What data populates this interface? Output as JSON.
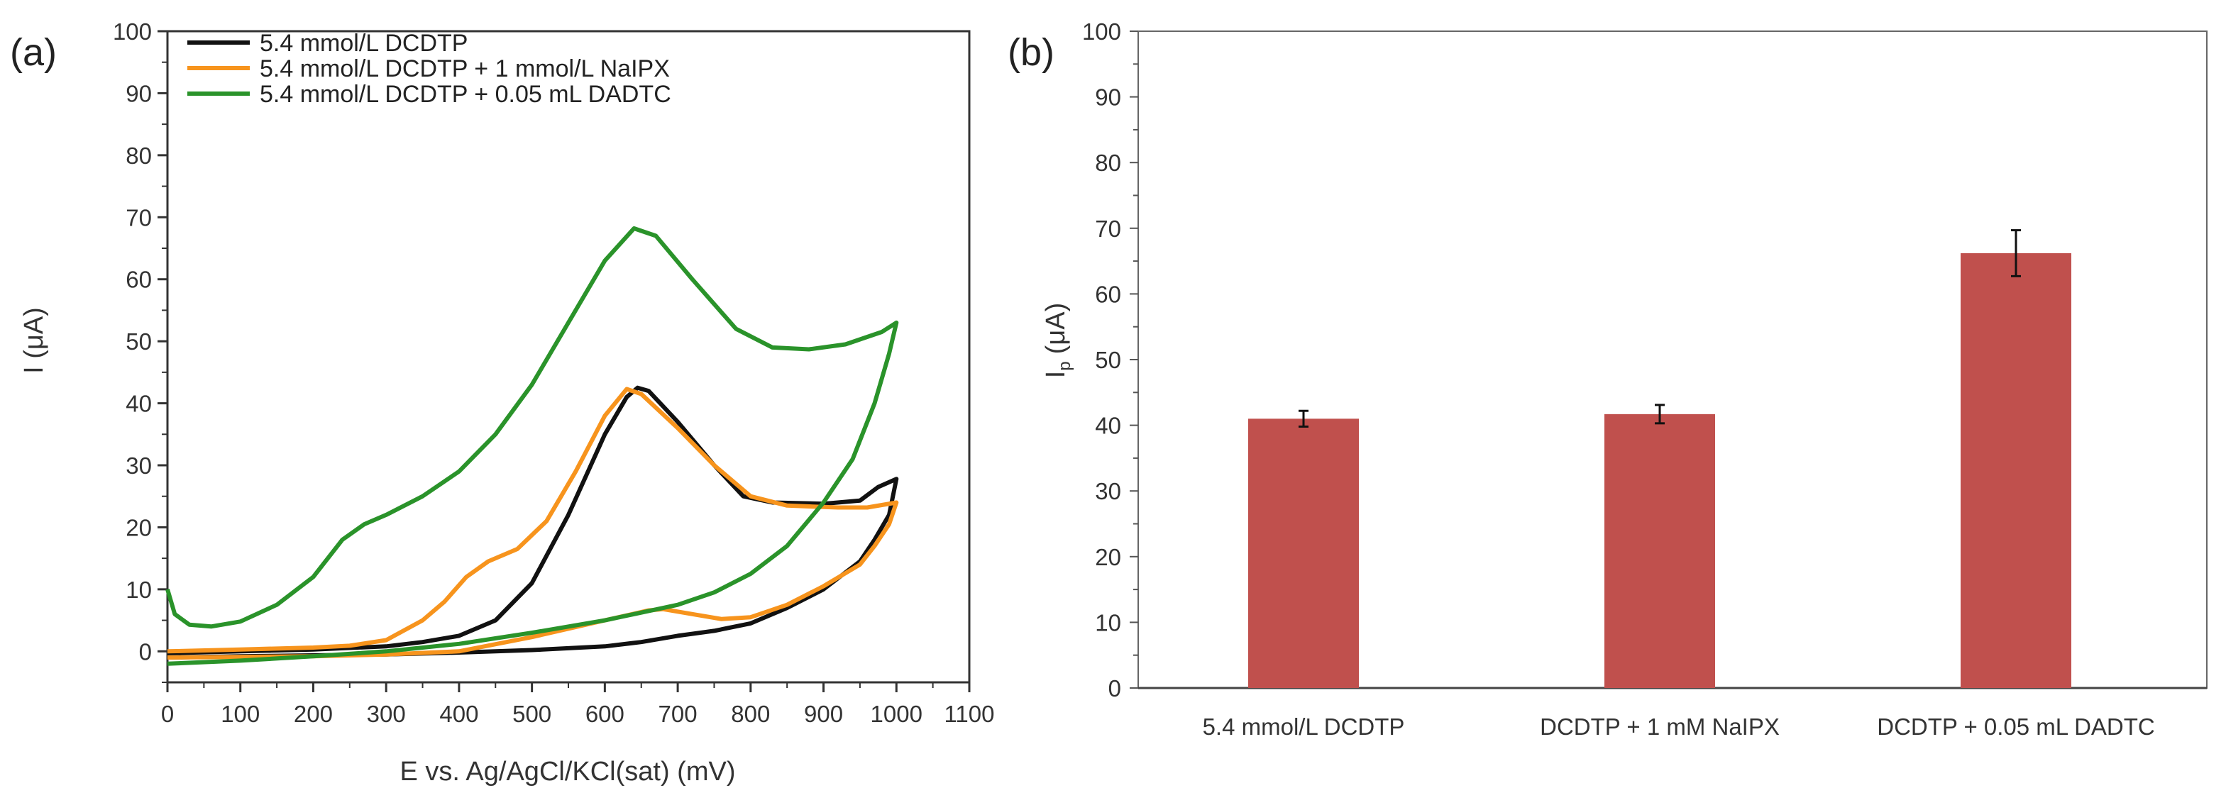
{
  "chart_data": [
    {
      "type": "line",
      "panel_label": "(a)",
      "xlabel": "E vs. Ag/AgCl/KCl(sat) (mV)",
      "ylabel": "I (μA)",
      "xlim": [
        0,
        1100
      ],
      "ylim": [
        -5,
        100
      ],
      "xticks": [
        0,
        100,
        200,
        300,
        400,
        500,
        600,
        700,
        800,
        900,
        1000,
        1100
      ],
      "yticks": [
        0,
        10,
        20,
        30,
        40,
        50,
        60,
        70,
        80,
        90,
        100
      ],
      "grid": false,
      "legend_position": "top-left",
      "series": [
        {
          "name": "5.4 mmol/L DCDTP",
          "color": "#111111",
          "points": [
            [
              0,
              -0.3
            ],
            [
              100,
              0
            ],
            [
              200,
              0.3
            ],
            [
              300,
              0.8
            ],
            [
              350,
              1.5
            ],
            [
              400,
              2.5
            ],
            [
              450,
              5
            ],
            [
              500,
              11
            ],
            [
              550,
              22
            ],
            [
              600,
              35
            ],
            [
              630,
              41
            ],
            [
              645,
              42.5
            ],
            [
              660,
              42
            ],
            [
              700,
              37
            ],
            [
              750,
              30
            ],
            [
              790,
              25
            ],
            [
              830,
              24
            ],
            [
              900,
              23.8
            ],
            [
              950,
              24.3
            ],
            [
              975,
              26.5
            ],
            [
              1000,
              27.8
            ],
            [
              990,
              22
            ],
            [
              970,
              18
            ],
            [
              950,
              14.5
            ],
            [
              900,
              10
            ],
            [
              850,
              7
            ],
            [
              800,
              4.5
            ],
            [
              750,
              3.3
            ],
            [
              700,
              2.5
            ],
            [
              650,
              1.5
            ],
            [
              600,
              0.8
            ],
            [
              500,
              0.2
            ],
            [
              400,
              -0.2
            ],
            [
              300,
              -0.5
            ],
            [
              100,
              -0.8
            ],
            [
              0,
              -1
            ]
          ]
        },
        {
          "name": "5.4 mmol/L DCDTP + 1 mmol/L NaIPX",
          "color": "#f7941d",
          "points": [
            [
              0,
              0
            ],
            [
              100,
              0.3
            ],
            [
              200,
              0.6
            ],
            [
              250,
              0.9
            ],
            [
              300,
              1.8
            ],
            [
              350,
              5
            ],
            [
              380,
              8
            ],
            [
              410,
              12
            ],
            [
              440,
              14.5
            ],
            [
              480,
              16.5
            ],
            [
              520,
              21
            ],
            [
              560,
              29
            ],
            [
              600,
              38
            ],
            [
              630,
              42.3
            ],
            [
              650,
              41.5
            ],
            [
              700,
              36
            ],
            [
              750,
              30
            ],
            [
              800,
              25
            ],
            [
              850,
              23.5
            ],
            [
              920,
              23.2
            ],
            [
              960,
              23.2
            ],
            [
              1000,
              24
            ],
            [
              990,
              20.5
            ],
            [
              970,
              17
            ],
            [
              950,
              14
            ],
            [
              900,
              10.5
            ],
            [
              850,
              7.5
            ],
            [
              800,
              5.5
            ],
            [
              760,
              5.2
            ],
            [
              720,
              6
            ],
            [
              680,
              6.8
            ],
            [
              660,
              6.6
            ],
            [
              600,
              5
            ],
            [
              500,
              2.3
            ],
            [
              400,
              0
            ],
            [
              300,
              -0.5
            ],
            [
              200,
              -0.8
            ],
            [
              0,
              -1
            ]
          ]
        },
        {
          "name": "5.4 mmol/L DCDTP + 0.05 mL DADTC",
          "color": "#2a932a",
          "points": [
            [
              0,
              10
            ],
            [
              10,
              6
            ],
            [
              30,
              4.3
            ],
            [
              60,
              4
            ],
            [
              100,
              4.8
            ],
            [
              150,
              7.5
            ],
            [
              200,
              12
            ],
            [
              240,
              18
            ],
            [
              270,
              20.5
            ],
            [
              300,
              22
            ],
            [
              350,
              25
            ],
            [
              400,
              29
            ],
            [
              450,
              35
            ],
            [
              500,
              43
            ],
            [
              550,
              53
            ],
            [
              600,
              63
            ],
            [
              640,
              68.2
            ],
            [
              670,
              67
            ],
            [
              720,
              60
            ],
            [
              780,
              52
            ],
            [
              830,
              49
            ],
            [
              880,
              48.7
            ],
            [
              930,
              49.5
            ],
            [
              980,
              51.5
            ],
            [
              1000,
              53
            ],
            [
              990,
              48
            ],
            [
              970,
              40
            ],
            [
              940,
              31
            ],
            [
              900,
              24
            ],
            [
              850,
              17
            ],
            [
              800,
              12.5
            ],
            [
              750,
              9.5
            ],
            [
              700,
              7.5
            ],
            [
              600,
              5
            ],
            [
              500,
              3
            ],
            [
              400,
              1.2
            ],
            [
              300,
              0
            ],
            [
              200,
              -0.8
            ],
            [
              100,
              -1.5
            ],
            [
              0,
              -2
            ]
          ]
        }
      ]
    },
    {
      "type": "bar",
      "panel_label": "(b)",
      "xlabel": "",
      "ylabel": "I",
      "ylabel_sub": "p",
      "ylabel_unit": "(μA)",
      "ylim": [
        0,
        100
      ],
      "yticks": [
        0,
        10,
        20,
        30,
        40,
        50,
        60,
        70,
        80,
        90,
        100
      ],
      "grid": false,
      "bar_color": "#c0504d",
      "categories": [
        "5.4 mmol/L DCDTP",
        "DCDTP + 1 mM NaIPX",
        "DCDTP + 0.05 mL DADTC"
      ],
      "values": [
        41.0,
        41.7,
        66.2
      ],
      "errors": [
        1.2,
        1.4,
        3.5
      ]
    }
  ]
}
